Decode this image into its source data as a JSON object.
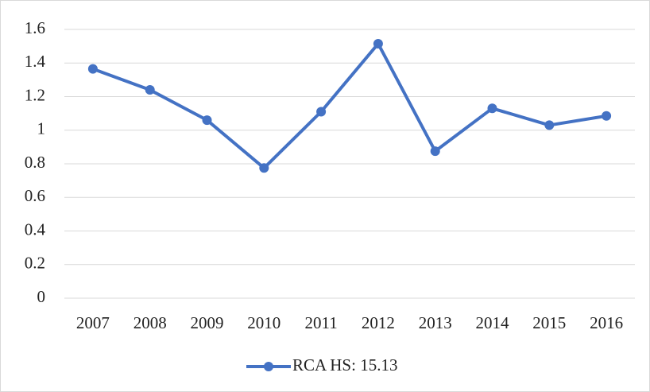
{
  "chart_data": {
    "type": "line",
    "categories": [
      "2007",
      "2008",
      "2009",
      "2010",
      "2011",
      "2012",
      "2013",
      "2014",
      "2015",
      "2016"
    ],
    "series": [
      {
        "name": "RCA HS: 15.13",
        "color": "#4472c4",
        "values": [
          1.365,
          1.24,
          1.06,
          0.775,
          1.11,
          1.515,
          0.875,
          1.13,
          1.03,
          1.085
        ]
      }
    ],
    "ylim": [
      0,
      1.6
    ],
    "yticks": [
      0,
      0.2,
      0.4,
      0.6,
      0.8,
      1,
      1.2,
      1.4,
      1.6
    ],
    "grid": true,
    "legend": "bottom"
  }
}
